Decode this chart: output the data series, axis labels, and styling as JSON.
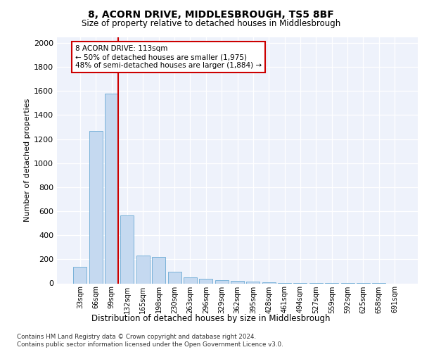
{
  "title": "8, ACORN DRIVE, MIDDLESBROUGH, TS5 8BF",
  "subtitle": "Size of property relative to detached houses in Middlesbrough",
  "xlabel": "Distribution of detached houses by size in Middlesbrough",
  "ylabel": "Number of detached properties",
  "bin_labels": [
    "33sqm",
    "66sqm",
    "99sqm",
    "132sqm",
    "165sqm",
    "198sqm",
    "230sqm",
    "263sqm",
    "296sqm",
    "329sqm",
    "362sqm",
    "395sqm",
    "428sqm",
    "461sqm",
    "494sqm",
    "527sqm",
    "559sqm",
    "592sqm",
    "625sqm",
    "658sqm",
    "691sqm"
  ],
  "bar_values": [
    140,
    1270,
    1580,
    565,
    230,
    220,
    95,
    50,
    40,
    25,
    20,
    15,
    10,
    5,
    3,
    2,
    1,
    1,
    1,
    1,
    0
  ],
  "bar_color": "#c5d9f0",
  "bar_edge_color": "#6aaad4",
  "annotation_text": "8 ACORN DRIVE: 113sqm\n← 50% of detached houses are smaller (1,975)\n48% of semi-detached houses are larger (1,884) →",
  "annotation_box_color": "#cc0000",
  "ylim": [
    0,
    2050
  ],
  "yticks": [
    0,
    200,
    400,
    600,
    800,
    1000,
    1200,
    1400,
    1600,
    1800,
    2000
  ],
  "footer_line1": "Contains HM Land Registry data © Crown copyright and database right 2024.",
  "footer_line2": "Contains public sector information licensed under the Open Government Licence v3.0.",
  "plot_bg_color": "#eef2fb"
}
